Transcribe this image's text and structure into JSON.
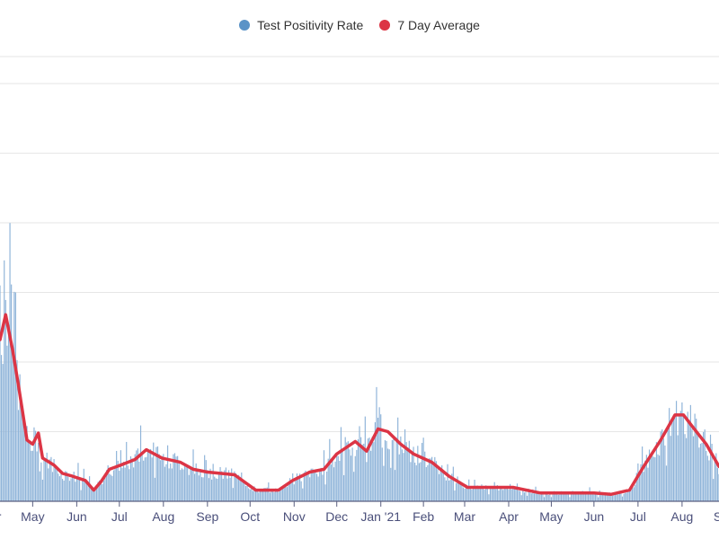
{
  "chart_data": {
    "type": "bar",
    "title": "",
    "xlabel": "",
    "ylabel": "",
    "x_unit": "days since start of visible window",
    "xlim": [
      0,
      506
    ],
    "ylim": [
      0,
      32
    ],
    "grid": true,
    "legend_placement": "top-center",
    "legend": [
      {
        "label": "Test Positivity Rate",
        "color": "#5b93c7",
        "marker": "circle"
      },
      {
        "label": "7 Day Average",
        "color": "#dc3545",
        "marker": "circle"
      }
    ],
    "x_ticks": [
      {
        "day": -6,
        "label": "Apr"
      },
      {
        "day": 23,
        "label": "May"
      },
      {
        "day": 54,
        "label": "Jun"
      },
      {
        "day": 84,
        "label": "Jul"
      },
      {
        "day": 115,
        "label": "Aug"
      },
      {
        "day": 146,
        "label": "Sep"
      },
      {
        "day": 176,
        "label": "Oct"
      },
      {
        "day": 207,
        "label": "Nov"
      },
      {
        "day": 237,
        "label": "Dec"
      },
      {
        "day": 268,
        "label": "Jan '21"
      },
      {
        "day": 298,
        "label": "Feb"
      },
      {
        "day": 327,
        "label": "Mar"
      },
      {
        "day": 358,
        "label": "Apr"
      },
      {
        "day": 388,
        "label": "May"
      },
      {
        "day": 418,
        "label": "Jun"
      },
      {
        "day": 449,
        "label": "Jul"
      },
      {
        "day": 480,
        "label": "Aug"
      },
      {
        "day": 510,
        "label": "Sep"
      }
    ],
    "y_gridlines": [
      5,
      10,
      15,
      20,
      25,
      30
    ],
    "series": [
      {
        "name": "7 Day Average",
        "type": "line",
        "color": "#dc3545",
        "points": [
          [
            0,
            11.6
          ],
          [
            4,
            13.4
          ],
          [
            9,
            10.8
          ],
          [
            13,
            8.3
          ],
          [
            19,
            4.4
          ],
          [
            23,
            4.1
          ],
          [
            27,
            4.9
          ],
          [
            30,
            3.1
          ],
          [
            38,
            2.6
          ],
          [
            44,
            2.0
          ],
          [
            51,
            1.8
          ],
          [
            60,
            1.5
          ],
          [
            66,
            0.8
          ],
          [
            71,
            1.4
          ],
          [
            77,
            2.3
          ],
          [
            85,
            2.6
          ],
          [
            95,
            3.0
          ],
          [
            103,
            3.7
          ],
          [
            114,
            3.1
          ],
          [
            127,
            2.8
          ],
          [
            136,
            2.3
          ],
          [
            146,
            2.1
          ],
          [
            165,
            1.9
          ],
          [
            180,
            0.8
          ],
          [
            196,
            0.8
          ],
          [
            206,
            1.5
          ],
          [
            218,
            2.1
          ],
          [
            228,
            2.3
          ],
          [
            237,
            3.4
          ],
          [
            250,
            4.3
          ],
          [
            258,
            3.6
          ],
          [
            266,
            5.2
          ],
          [
            273,
            5.0
          ],
          [
            282,
            4.1
          ],
          [
            291,
            3.4
          ],
          [
            304,
            2.8
          ],
          [
            316,
            1.8
          ],
          [
            329,
            1.0
          ],
          [
            342,
            1.0
          ],
          [
            361,
            1.0
          ],
          [
            380,
            0.6
          ],
          [
            399,
            0.6
          ],
          [
            418,
            0.6
          ],
          [
            430,
            0.5
          ],
          [
            443,
            0.8
          ],
          [
            453,
            2.5
          ],
          [
            465,
            4.4
          ],
          [
            475,
            6.2
          ],
          [
            481,
            6.2
          ],
          [
            487,
            5.4
          ],
          [
            497,
            4.1
          ],
          [
            506,
            2.5
          ]
        ]
      },
      {
        "name": "Test Positivity Rate",
        "type": "bar",
        "color": "#8fb4d9",
        "note": "daily values scatter around the 7 day average; peak ~17.3 near day 3"
      }
    ]
  }
}
